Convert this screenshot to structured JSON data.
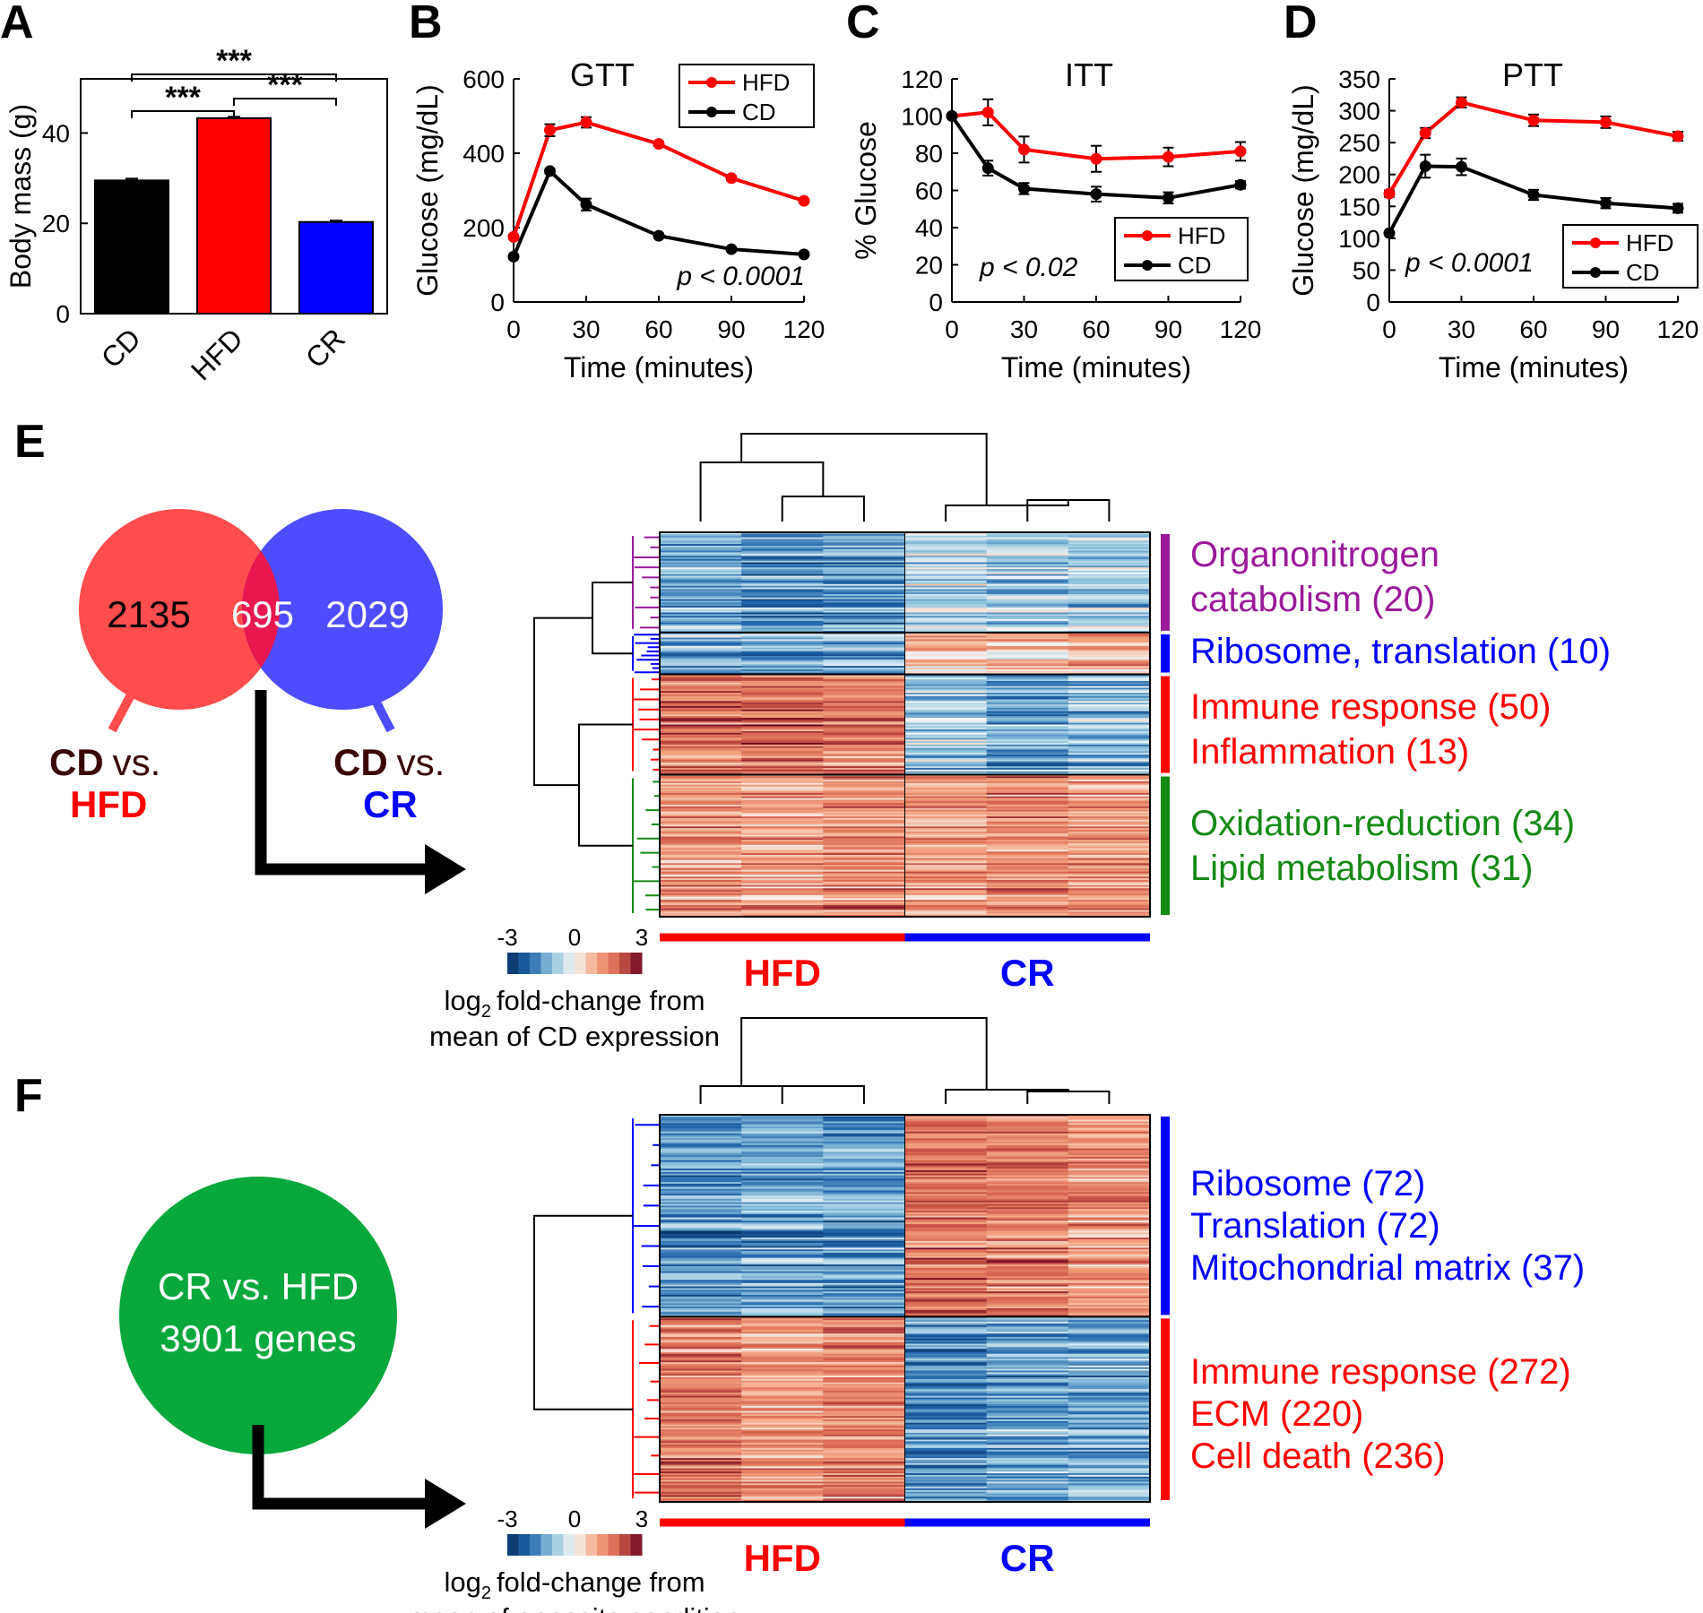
{
  "panel_letters": [
    "A",
    "B",
    "C",
    "D",
    "E",
    "F"
  ],
  "colors": {
    "HFD": "#ff0000",
    "CD": "#000000",
    "CR": "#0000ff",
    "venn_red": "#ff4d4d",
    "venn_blue": "#4d4dff",
    "venn_overlap": "#e8174f",
    "green": "#08a83c",
    "purple": "#9a1a9a",
    "term_green": "#148a14"
  },
  "chart_data": [
    {
      "panel": "A",
      "type": "bar",
      "categories": [
        "CD",
        "HFD",
        "CR"
      ],
      "values": [
        29.5,
        43.3,
        20.3
      ],
      "errors": [
        0.4,
        0.3,
        0.3
      ],
      "ylabel": "Body mass (g)",
      "ylim": [
        0,
        52
      ],
      "yticks": [
        0,
        20,
        40
      ],
      "significance": [
        {
          "from": 0,
          "to": 1,
          "label": "***"
        },
        {
          "from": 1,
          "to": 2,
          "label": "***"
        },
        {
          "from": 0,
          "to": 2,
          "label": "***"
        }
      ]
    },
    {
      "panel": "B",
      "type": "line",
      "title": "GTT",
      "x": [
        0,
        15,
        30,
        60,
        90,
        120
      ],
      "series": [
        {
          "name": "HFD",
          "values": [
            175,
            462,
            483,
            425,
            333,
            272
          ],
          "errors": [
            5,
            16,
            14,
            6,
            5,
            5
          ]
        },
        {
          "name": "CD",
          "values": [
            122,
            352,
            262,
            178,
            142,
            128
          ],
          "errors": [
            5,
            6,
            16,
            6,
            5,
            5
          ]
        }
      ],
      "xlabel": "Time (minutes)",
      "ylabel": "Glucose (mg/dL)",
      "xlim": [
        0,
        120
      ],
      "ylim": [
        0,
        600
      ],
      "xticks": [
        0,
        30,
        60,
        90,
        120
      ],
      "yticks": [
        0,
        200,
        400,
        600
      ],
      "annotation": "p < 0.0001",
      "legend": "top-right"
    },
    {
      "panel": "C",
      "type": "line",
      "title": "ITT",
      "x": [
        0,
        15,
        30,
        60,
        90,
        120
      ],
      "series": [
        {
          "name": "HFD",
          "values": [
            100,
            102,
            82,
            77,
            78,
            81
          ],
          "errors": [
            0,
            7,
            7,
            7,
            5,
            5
          ]
        },
        {
          "name": "CD",
          "values": [
            100,
            72,
            61,
            58,
            56,
            63
          ],
          "errors": [
            0,
            4,
            3,
            4,
            3,
            2
          ]
        }
      ],
      "xlabel": "Time (minutes)",
      "ylabel": "% Glucose",
      "xlim": [
        0,
        120
      ],
      "ylim": [
        0,
        120
      ],
      "xticks": [
        0,
        30,
        60,
        90,
        120
      ],
      "yticks": [
        0,
        20,
        40,
        60,
        80,
        100,
        120
      ],
      "annotation": "p < 0.02",
      "legend": "bottom-right"
    },
    {
      "panel": "D",
      "type": "line",
      "title": "PTT",
      "x": [
        0,
        15,
        30,
        60,
        90,
        120
      ],
      "series": [
        {
          "name": "HFD",
          "values": [
            170,
            265,
            313,
            285,
            282,
            260
          ],
          "errors": [
            5,
            8,
            8,
            9,
            9,
            7
          ]
        },
        {
          "name": "CD",
          "values": [
            108,
            213,
            212,
            168,
            155,
            147
          ],
          "errors": [
            3,
            18,
            13,
            8,
            8,
            7
          ]
        }
      ],
      "xlabel": "Time (minutes)",
      "ylabel": "Glucose (mg/dL)",
      "xlim": [
        0,
        120
      ],
      "ylim": [
        0,
        350
      ],
      "xticks": [
        0,
        30,
        60,
        90,
        120
      ],
      "yticks": [
        0,
        50,
        100,
        150,
        200,
        250,
        300,
        350
      ],
      "annotation": "p < 0.0001",
      "legend": "bottom-right"
    },
    {
      "panel": "E",
      "type": "heatmap",
      "columns": [
        "HFD",
        "HFD",
        "HFD",
        "CR",
        "CR",
        "CR"
      ],
      "column_groups": [
        "HFD",
        "CR"
      ],
      "color_scale": {
        "min": -3,
        "max": 3,
        "ticks": [
          "-3",
          "0",
          "3"
        ],
        "label_main": "fold-change from",
        "label_line2": "mean of CD expression"
      },
      "row_blocks": [
        {
          "term": [
            "Organonitrogen",
            "catabolism (20)"
          ],
          "color": "#9a1a9a",
          "rows": 60,
          "values": [
            -1.2,
            -1.5,
            -1.4,
            -0.6,
            -0.8,
            -0.7
          ]
        },
        {
          "term": [
            "Ribosome, translation (10)"
          ],
          "color": "#0000ff",
          "rows": 25,
          "values": [
            -1.1,
            -1.3,
            -1.2,
            0.8,
            0.7,
            1.0
          ]
        },
        {
          "term": [
            "Immune response (50)",
            "Inflammation (13)"
          ],
          "color": "#ff0000",
          "rows": 60,
          "values": [
            1.6,
            1.8,
            1.5,
            -0.8,
            -1.3,
            -1.0
          ]
        },
        {
          "term": [
            "Oxidation-reduction (34)",
            "Lipid metabolism (31)"
          ],
          "color": "#148a14",
          "rows": 85,
          "values": [
            1.3,
            1.2,
            1.4,
            1.2,
            1.5,
            1.3
          ]
        }
      ]
    },
    {
      "panel": "F",
      "type": "heatmap",
      "columns": [
        "HFD",
        "HFD",
        "HFD",
        "CR",
        "CR",
        "CR"
      ],
      "column_groups": [
        "HFD",
        "CR"
      ],
      "color_scale": {
        "min": -3,
        "max": 3,
        "ticks": [
          "-3",
          "0",
          "3"
        ],
        "label_main": "fold-change from",
        "label_line2": "mean of opposite condition"
      },
      "row_blocks": [
        {
          "term": [
            "Ribosome (72)",
            "Translation (72)",
            "Mitochondrial matrix (37)"
          ],
          "color": "#0000ff",
          "rows": 120,
          "values": [
            -1.6,
            -1.4,
            -1.5,
            1.6,
            1.5,
            1.2
          ]
        },
        {
          "term": [
            "Immune response (272)",
            "ECM (220)",
            "Cell death (236)"
          ],
          "color": "#ff0000",
          "rows": 110,
          "values": [
            1.6,
            1.2,
            1.5,
            -1.6,
            -1.3,
            -1.2
          ]
        }
      ]
    }
  ],
  "venn": {
    "left_count": "2135",
    "overlap_count": "695",
    "right_count": "2029",
    "left_label_1": "CD",
    "left_label_2": "vs.",
    "left_label_3": "HFD",
    "right_label_1": "CD",
    "right_label_2": "vs.",
    "right_label_3": "CR"
  },
  "green_circle": {
    "line1": "CR vs. HFD",
    "line2": "3901 genes"
  },
  "scale_log": "log",
  "scale_sub": "2"
}
